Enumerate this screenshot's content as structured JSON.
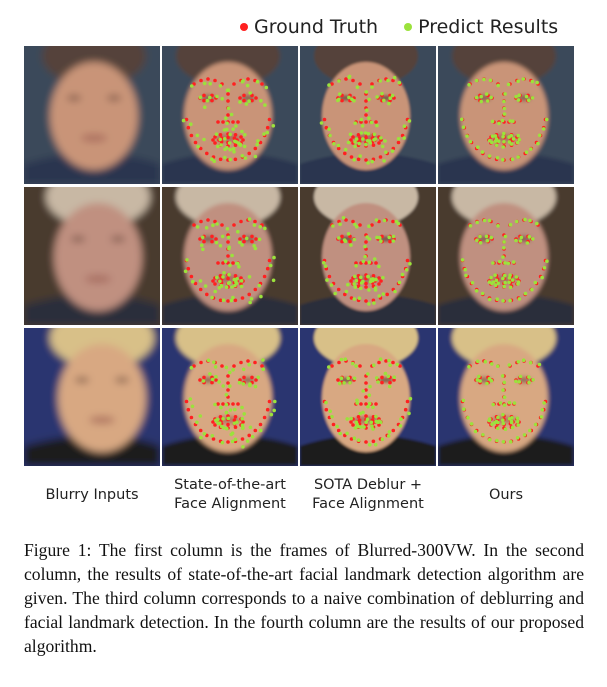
{
  "legend": [
    {
      "label": "Ground Truth",
      "color": "#ff2020"
    },
    {
      "label": "Predict Results",
      "color": "#9be23c"
    }
  ],
  "columns": [
    {
      "label_line1": "Blurry Inputs",
      "label_line2": ""
    },
    {
      "label_line1": "State-of-the-art",
      "label_line2": "Face Alignment"
    },
    {
      "label_line1": "SOTA Deblur +",
      "label_line2": "Face Alignment"
    },
    {
      "label_line1": "Ours",
      "label_line2": ""
    }
  ],
  "rows": [
    {
      "background": "#3a4a5a",
      "skin": "#c99478",
      "hair": "#55433a",
      "clothing": "#2b3550"
    },
    {
      "background": "#4a3a2e",
      "skin": "#c09080",
      "hair": "#c8b8a4",
      "clothing": "#2a2e3a"
    },
    {
      "background": "#2a3470",
      "skin": "#d8a882",
      "hair": "#d8c088",
      "clothing": "#1a1a1a"
    }
  ],
  "caption": "Figure 1: The first column is the frames of Blurred-300VW. In the second column, the results of state-of-the-art facial landmark detection algorithm are given. The third column corresponds to a naive combination of deblurring and facial landmark detection. In the fourth column are the results of our proposed algorithm."
}
